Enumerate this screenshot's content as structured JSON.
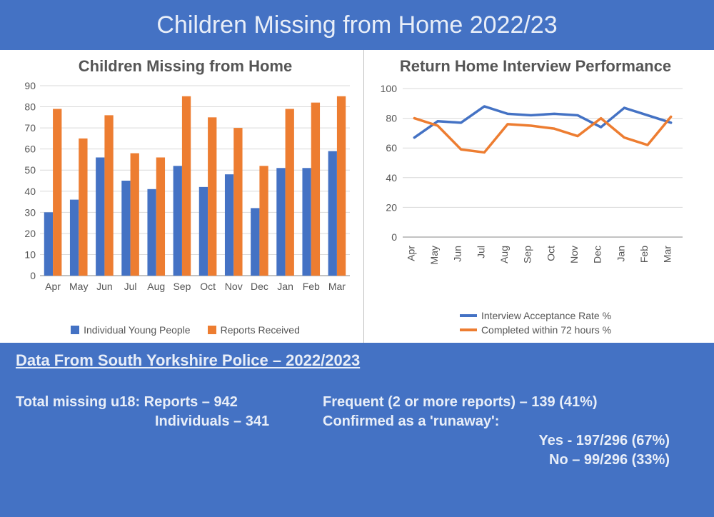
{
  "page": {
    "title": "Children Missing from Home 2022/23",
    "bg_color": "#4472c4",
    "title_color": "#e8eef8"
  },
  "bar_chart": {
    "type": "bar",
    "title": "Children Missing from Home",
    "categories": [
      "Apr",
      "May",
      "Jun",
      "Jul",
      "Aug",
      "Sep",
      "Oct",
      "Nov",
      "Dec",
      "Jan",
      "Feb",
      "Mar"
    ],
    "series": [
      {
        "name": "Individual Young People",
        "color": "#4472c4",
        "values": [
          30,
          36,
          56,
          45,
          41,
          52,
          42,
          48,
          32,
          51,
          51,
          59
        ]
      },
      {
        "name": "Reports Received",
        "color": "#ed7d31",
        "values": [
          79,
          65,
          76,
          58,
          56,
          85,
          75,
          70,
          52,
          79,
          82,
          85
        ]
      }
    ],
    "ylim": [
      0,
      90
    ],
    "ytick_step": 10,
    "grid_color": "#d9d9d9",
    "axis_color": "#868686",
    "label_color": "#555555",
    "label_fontsize": 14,
    "title_fontsize": 22
  },
  "line_chart": {
    "type": "line",
    "title": "Return Home Interview Performance",
    "categories": [
      "Apr",
      "May",
      "Jun",
      "Jul",
      "Aug",
      "Sep",
      "Oct",
      "Nov",
      "Dec",
      "Jan",
      "Feb",
      "Mar"
    ],
    "series": [
      {
        "name": "Interview Acceptance Rate %",
        "color": "#4472c4",
        "values": [
          67,
          78,
          77,
          88,
          83,
          82,
          83,
          82,
          74,
          87,
          82,
          77
        ],
        "width": 3.5
      },
      {
        "name": "Completed within 72 hours %",
        "color": "#ed7d31",
        "values": [
          80,
          75,
          59,
          57,
          76,
          75,
          73,
          68,
          80,
          67,
          62,
          81
        ],
        "width": 3.5
      }
    ],
    "ylim": [
      0,
      100
    ],
    "ytick_step": 20,
    "grid_color": "#d9d9d9",
    "axis_color": "#868686",
    "label_color": "#555555",
    "label_fontsize": 14,
    "title_fontsize": 22,
    "xlabel_rotation": -90
  },
  "police": {
    "header": "Data From South Yorkshire Police – 2022/2023",
    "left": {
      "line1": "Total missing u18:  Reports – 942",
      "line2": "Individuals – 341"
    },
    "right": {
      "line1": "Frequent (2 or more reports) – 139 (41%)",
      "line2": "Confirmed as a 'runaway':",
      "line3": "Yes - 197/296 (67%)",
      "line4": "No – 99/296 (33%)"
    }
  }
}
